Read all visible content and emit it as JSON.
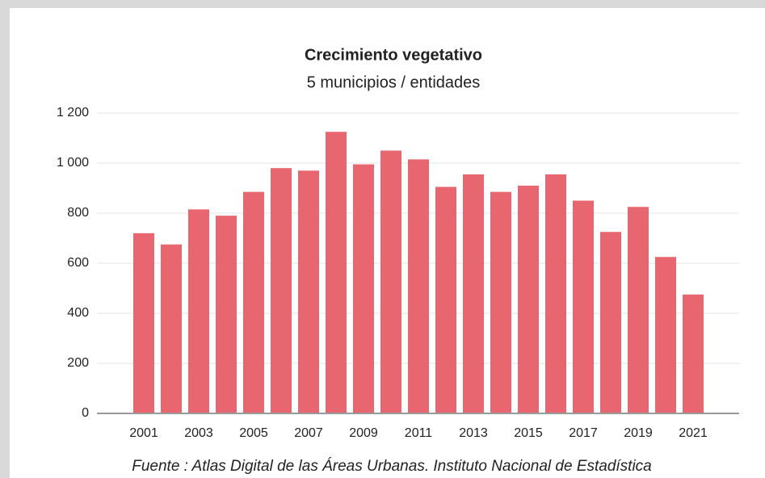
{
  "chart_data": {
    "type": "bar",
    "title": "Crecimiento vegetativo",
    "subtitle": "5 municipios / entidades",
    "source": "Fuente : Atlas Digital de las Áreas Urbanas. Instituto Nacional de Estadística",
    "categories": [
      "2001",
      null,
      "2003",
      null,
      "2005",
      null,
      "2007",
      null,
      "2009",
      null,
      "2011",
      null,
      "2013",
      null,
      "2015",
      null,
      "2017",
      null,
      "2019",
      null,
      "2021"
    ],
    "values": [
      720,
      675,
      815,
      790,
      885,
      980,
      970,
      1125,
      995,
      1050,
      1015,
      905,
      955,
      885,
      910,
      955,
      850,
      725,
      825,
      625,
      475
    ],
    "color": "#e8666f",
    "ylim": [
      0,
      1200
    ],
    "yticks": [
      0,
      200,
      400,
      600,
      800,
      {
        "value": 1000,
        "label": "1 000"
      },
      {
        "value": 1200,
        "label": "1 200"
      }
    ],
    "grid": true
  }
}
